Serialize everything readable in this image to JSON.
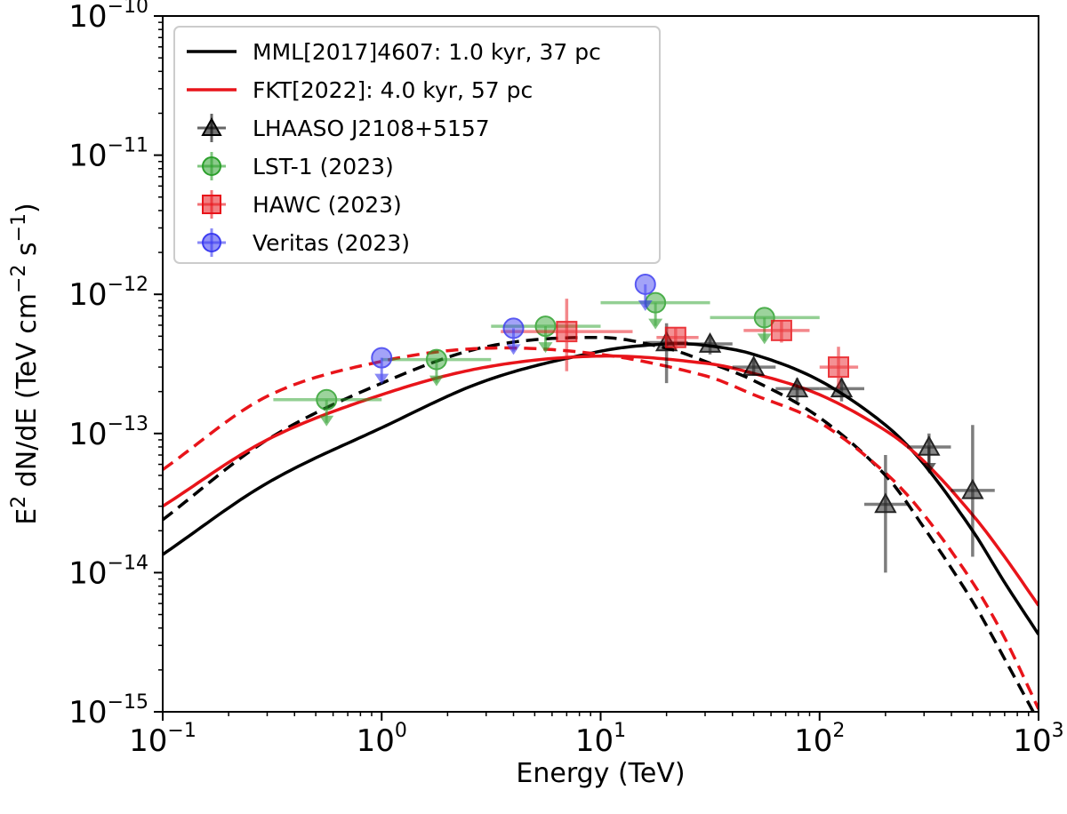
{
  "chart_data": {
    "type": "scatter",
    "xlabel": "Energy (TeV)",
    "ylabel": {
      "base": "E",
      "sup1": "2",
      "mid": " dN/dE (TeV cm",
      "sup2": "−2",
      "mid2": " s",
      "sup3": "−1",
      "end": ")"
    },
    "xscale": "log",
    "yscale": "log",
    "xlim": [
      0.1,
      1000
    ],
    "ylim": [
      1e-15,
      1e-10
    ],
    "x_ticks": [
      {
        "base": "10",
        "exp": "−1"
      },
      {
        "base": "10",
        "exp": "0"
      },
      {
        "base": "10",
        "exp": "1"
      },
      {
        "base": "10",
        "exp": "2"
      },
      {
        "base": "10",
        "exp": "3"
      }
    ],
    "y_ticks": [
      {
        "base": "10",
        "exp": "−15"
      },
      {
        "base": "10",
        "exp": "−14"
      },
      {
        "base": "10",
        "exp": "−13"
      },
      {
        "base": "10",
        "exp": "−12"
      },
      {
        "base": "10",
        "exp": "−11"
      },
      {
        "base": "10",
        "exp": "−10"
      }
    ],
    "legend_position": "top-left",
    "models": [
      {
        "name": "MML[2017]4607: 1.0 kyr, 37 pc",
        "color": "#000000",
        "solid": {
          "x": [
            0.1,
            0.3,
            1,
            3,
            10,
            20,
            30,
            50,
            100,
            200,
            300,
            500,
            700,
            1000
          ],
          "y": [
            1.35e-14,
            4.4e-14,
            1.1e-13,
            2.4e-13,
            3.9e-13,
            4.4e-13,
            4.3e-13,
            3.7e-13,
            2.4e-13,
            1.15e-13,
            6e-14,
            2e-14,
            8.5e-15,
            3.6e-15
          ]
        },
        "dashed": {
          "x": [
            0.1,
            0.3,
            1,
            3,
            10,
            20,
            30,
            50,
            100,
            200,
            300,
            500,
            700,
            1000
          ],
          "y": [
            2.4e-14,
            9e-14,
            2.3e-13,
            4.2e-13,
            4.9e-13,
            4.1e-13,
            3.3e-13,
            2.4e-13,
            1.3e-13,
            5e-14,
            2.1e-14,
            6.2e-15,
            2.4e-15,
            8.5e-16
          ]
        }
      },
      {
        "name": "FKT[2022]: 4.0 kyr, 57 pc",
        "color": "#e8141a",
        "solid": {
          "x": [
            0.1,
            0.3,
            1,
            3,
            10,
            30,
            50,
            100,
            200,
            300,
            500,
            700,
            1000
          ],
          "y": [
            3e-14,
            9e-14,
            1.9e-13,
            3e-13,
            3.6e-13,
            3.2e-13,
            2.7e-13,
            1.9e-13,
            1.05e-13,
            6.3e-14,
            2.6e-14,
            1.3e-14,
            5.8e-15
          ]
        },
        "dashed": {
          "x": [
            0.1,
            0.3,
            1,
            3,
            10,
            30,
            50,
            100,
            200,
            300,
            500,
            700,
            1000
          ],
          "y": [
            5.5e-14,
            1.85e-13,
            3.3e-13,
            4.1e-13,
            3.7e-13,
            2.6e-13,
            1.9e-13,
            1.2e-13,
            5.2e-14,
            2.6e-14,
            8.5e-15,
            3.4e-15,
            1.05e-15
          ]
        }
      }
    ],
    "series": [
      {
        "name": "LHAASO J2108+5157",
        "marker": "triangle",
        "color": "#000000",
        "points": [
          {
            "x": 20,
            "y": 4.5e-13,
            "xlo": 16,
            "xhi": 25,
            "ylo": 2.3e-13,
            "yhi": 6.2e-13
          },
          {
            "x": 31.6,
            "y": 4.4e-13,
            "xlo": 25,
            "xhi": 40,
            "ylo": 3.7e-13,
            "yhi": 5.1e-13
          },
          {
            "x": 50,
            "y": 3e-13,
            "xlo": 40,
            "xhi": 63,
            "ylo": 2.6e-13,
            "yhi": 3.4e-13
          },
          {
            "x": 79,
            "y": 2.1e-13,
            "xlo": 63,
            "xhi": 100,
            "ylo": 1.7e-13,
            "yhi": 2.5e-13
          },
          {
            "x": 126,
            "y": 2.1e-13,
            "xlo": 100,
            "xhi": 160,
            "ylo": 1.7e-13,
            "yhi": 2.5e-13
          },
          {
            "x": 200,
            "y": 3.1e-14,
            "xlo": 160,
            "xhi": 251,
            "ylo": 1e-14,
            "yhi": 7e-14
          },
          {
            "x": 316,
            "y": 8e-14,
            "xlo": 251,
            "xhi": 398,
            "ylo": 6e-14,
            "yhi": 1e-13,
            "ul": true
          },
          {
            "x": 500,
            "y": 3.9e-14,
            "xlo": 398,
            "xhi": 631,
            "ylo": 1.3e-14,
            "yhi": 1.15e-13
          }
        ]
      },
      {
        "name": "LST-1 (2023)",
        "marker": "circle",
        "color": "#2ca02c",
        "points": [
          {
            "x": 0.56,
            "y": 1.75e-13,
            "xlo": 0.32,
            "xhi": 1.0,
            "ul": true
          },
          {
            "x": 1.78,
            "y": 3.4e-13,
            "xlo": 1.0,
            "xhi": 3.16,
            "ul": true
          },
          {
            "x": 5.6,
            "y": 5.9e-13,
            "xlo": 3.16,
            "xhi": 10,
            "ul": true
          },
          {
            "x": 17.8,
            "y": 8.7e-13,
            "xlo": 10,
            "xhi": 31.6,
            "ul": true
          },
          {
            "x": 56,
            "y": 6.8e-13,
            "xlo": 31.6,
            "xhi": 100,
            "ul": true
          }
        ]
      },
      {
        "name": "HAWC (2023)",
        "marker": "square",
        "color": "#e8141a",
        "points": [
          {
            "x": 7.0,
            "y": 5.4e-13,
            "xlo": 3.5,
            "xhi": 14,
            "ylo": 2.8e-13,
            "yhi": 9.3e-13
          },
          {
            "x": 22,
            "y": 4.9e-13,
            "xlo": 18,
            "xhi": 28,
            "ylo": 4e-13,
            "yhi": 5.8e-13
          },
          {
            "x": 67,
            "y": 5.5e-13,
            "xlo": 45,
            "xhi": 90,
            "ylo": 4.5e-13,
            "yhi": 6.5e-13
          },
          {
            "x": 122,
            "y": 3e-13,
            "xlo": 100,
            "xhi": 150,
            "ylo": 2.1e-13,
            "yhi": 4.2e-13
          }
        ]
      },
      {
        "name": "Veritas (2023)",
        "marker": "circle",
        "color": "#3b3bf0",
        "points": [
          {
            "x": 1.0,
            "y": 3.5e-13,
            "ul": true
          },
          {
            "x": 4.0,
            "y": 5.7e-13,
            "ul": true
          },
          {
            "x": 16,
            "y": 1.18e-12,
            "ul": true
          }
        ]
      }
    ]
  }
}
